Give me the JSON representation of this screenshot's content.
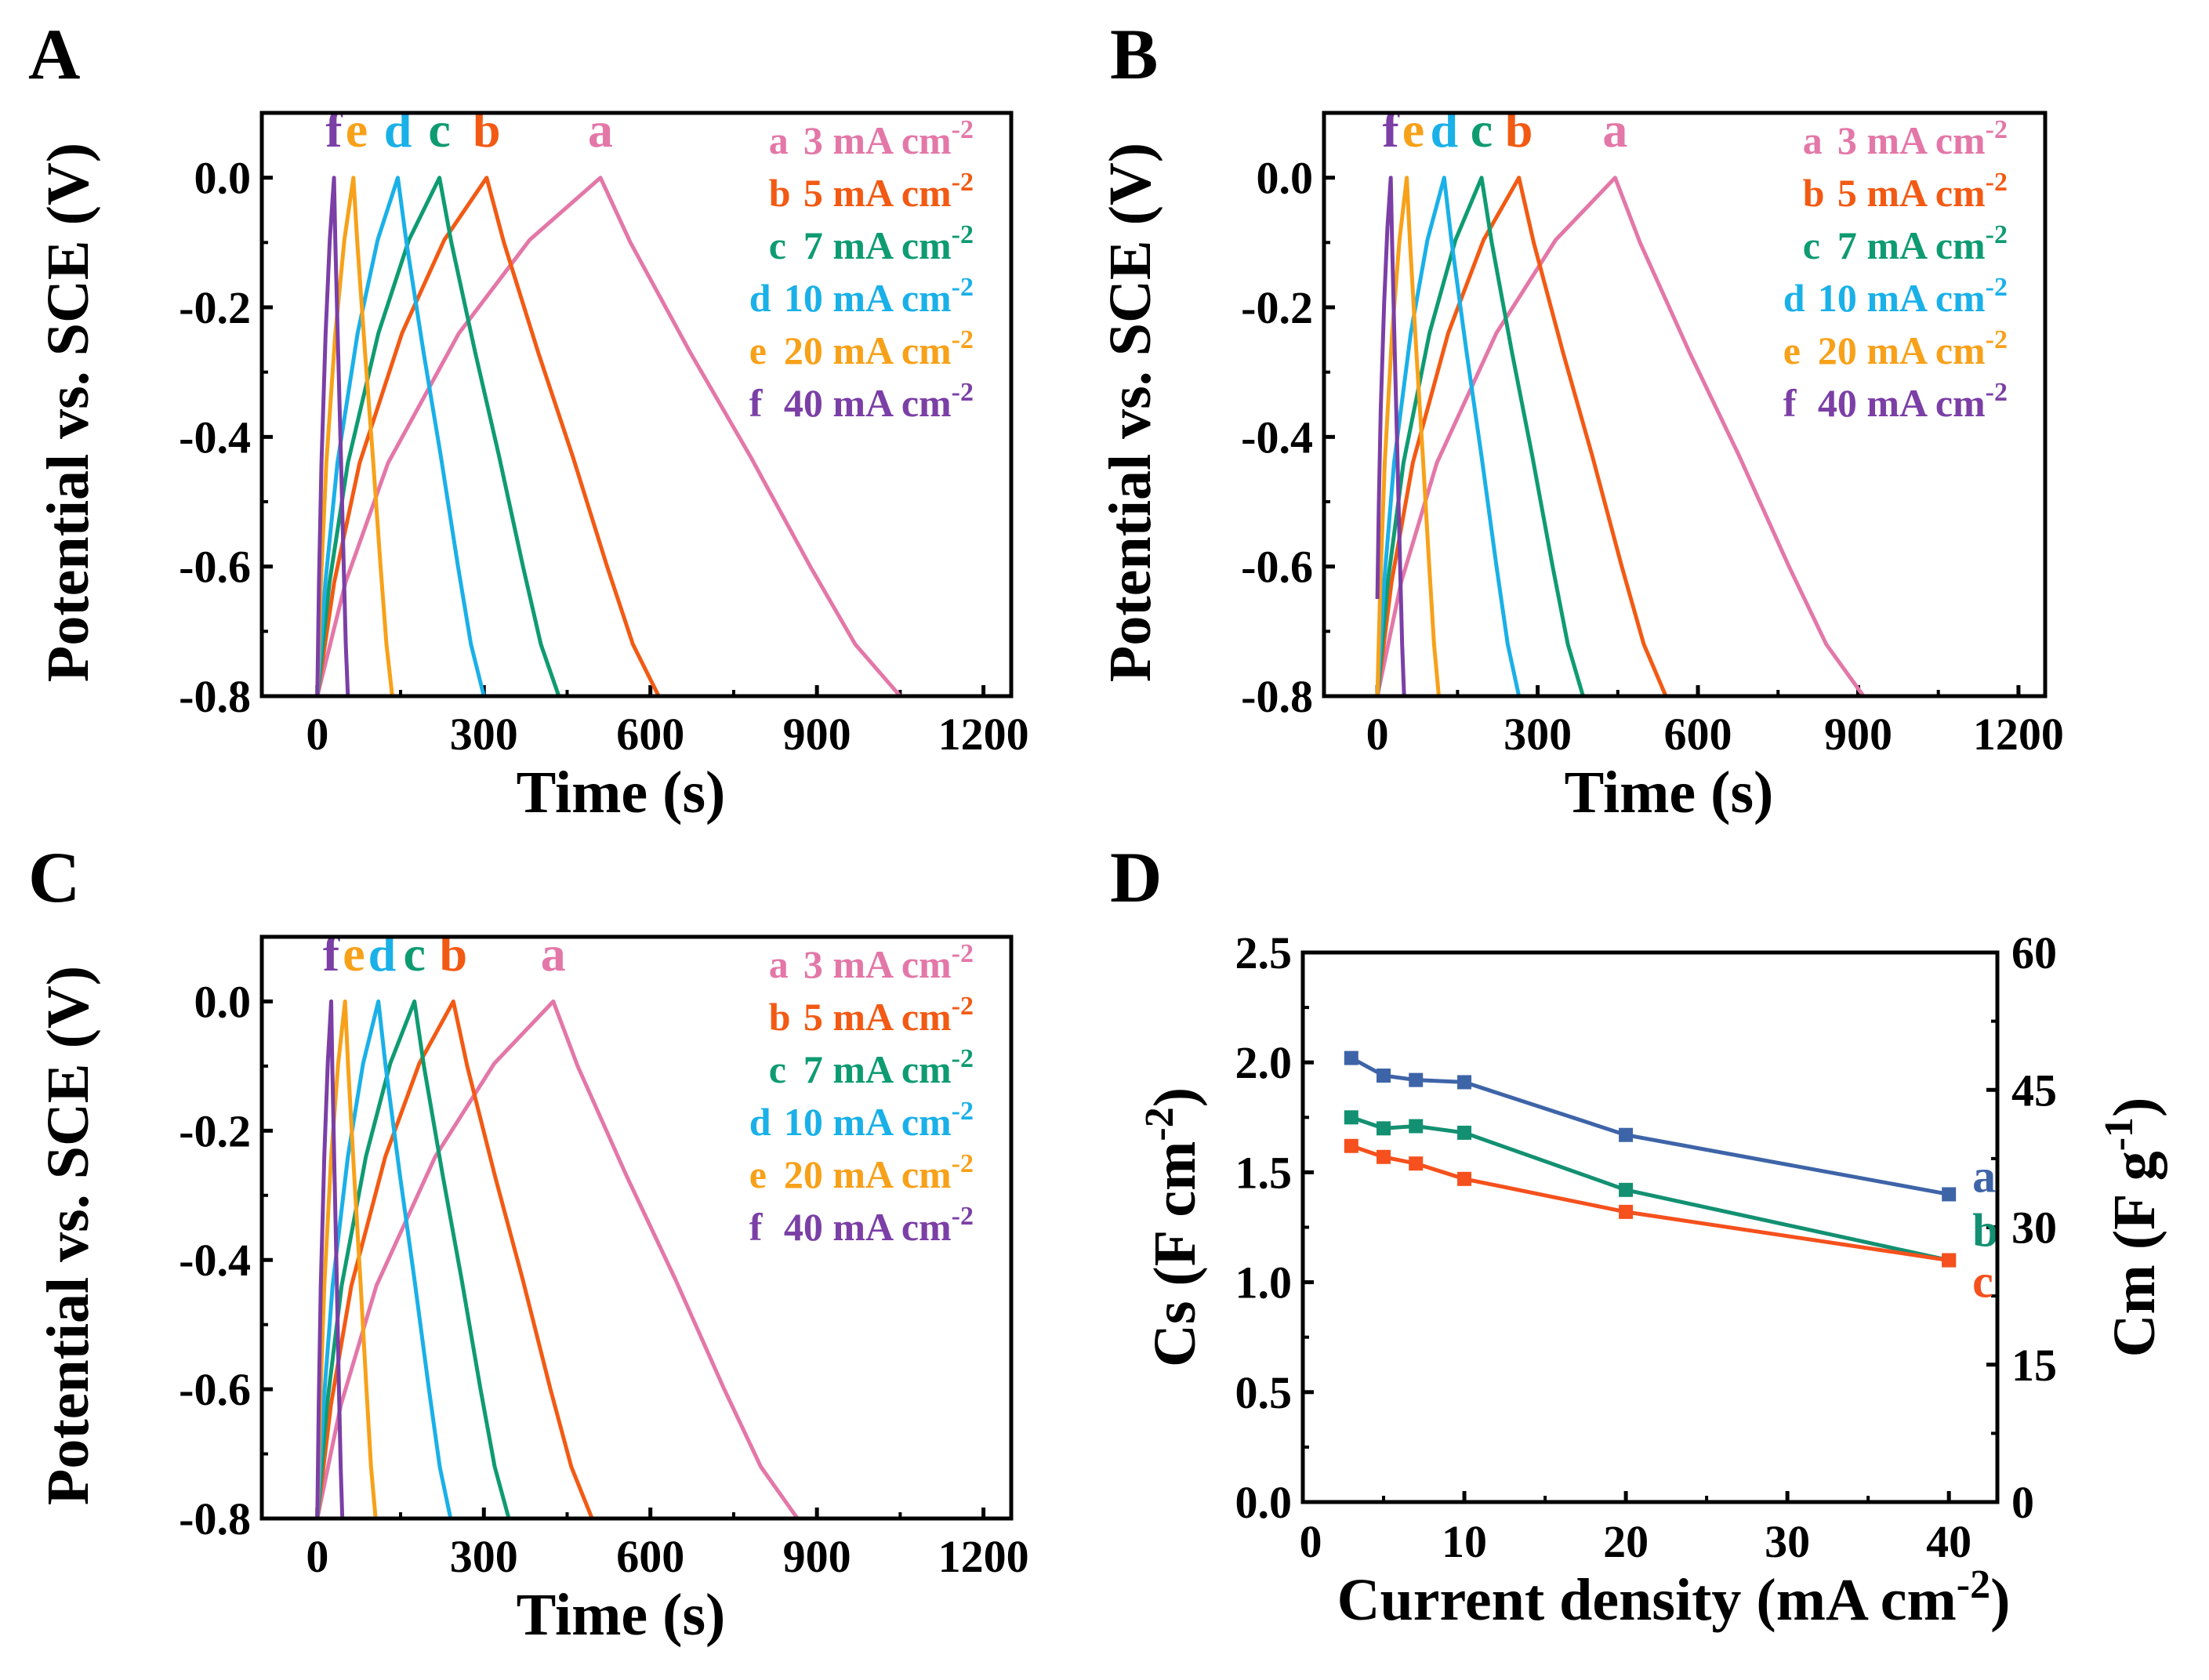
{
  "chart_data": [
    {
      "panel": "A",
      "type": "line",
      "xlabel": "Time (s)",
      "ylabel": "Potential vs. SCE (V)",
      "xlim": [
        -100,
        1250
      ],
      "ylim": [
        -0.8,
        0.1
      ],
      "xticks": [
        "0",
        "300",
        "600",
        "900",
        "1200"
      ],
      "yticks": [
        "0.0",
        "-0.2",
        "-0.4",
        "-0.6",
        "-0.8"
      ],
      "series": [
        {
          "id": "a",
          "name": "3 mA cm",
          "sup": "-2",
          "color": "#e377a8",
          "start_V": -0.8,
          "peak_V": 0.0,
          "charge_end_s": 510,
          "discharge_end_s": 1050
        },
        {
          "id": "b",
          "name": "5 mA cm",
          "sup": "-2",
          "color": "#f25a14",
          "start_V": -0.8,
          "peak_V": 0.0,
          "charge_end_s": 305,
          "discharge_end_s": 615
        },
        {
          "id": "c",
          "name": "7 mA cm",
          "sup": "-2",
          "color": "#0f9b72",
          "start_V": -0.8,
          "peak_V": 0.0,
          "charge_end_s": 220,
          "discharge_end_s": 435
        },
        {
          "id": "d",
          "name": "10 mA cm",
          "sup": "-2",
          "color": "#1ab0e8",
          "start_V": -0.8,
          "peak_V": 0.0,
          "charge_end_s": 145,
          "discharge_end_s": 300
        },
        {
          "id": "e",
          "name": "20 mA cm",
          "sup": "-2",
          "color": "#f7a11a",
          "start_V": -0.8,
          "peak_V": 0.0,
          "charge_end_s": 65,
          "discharge_end_s": 135
        },
        {
          "id": "f",
          "name": "40 mA cm",
          "sup": "-2",
          "color": "#7b3fa6",
          "start_V": -0.8,
          "peak_V": 0.0,
          "charge_end_s": 30,
          "discharge_end_s": 55
        }
      ]
    },
    {
      "panel": "B",
      "type": "line",
      "xlabel": "Time (s)",
      "ylabel": "Potential vs. SCE (V)",
      "xlim": [
        -100,
        1250
      ],
      "ylim": [
        -0.8,
        0.1
      ],
      "xticks": [
        "0",
        "300",
        "600",
        "900",
        "1200"
      ],
      "yticks": [
        "0.0",
        "-0.2",
        "-0.4",
        "-0.6",
        "-0.8"
      ],
      "series": [
        {
          "id": "a",
          "name": "3 mA cm",
          "sup": "-2",
          "color": "#e377a8",
          "start_V": -0.8,
          "peak_V": 0.0,
          "charge_end_s": 445,
          "discharge_end_s": 910
        },
        {
          "id": "b",
          "name": "5 mA cm",
          "sup": "-2",
          "color": "#f25a14",
          "start_V": -0.8,
          "peak_V": 0.0,
          "charge_end_s": 265,
          "discharge_end_s": 540
        },
        {
          "id": "c",
          "name": "7 mA cm",
          "sup": "-2",
          "color": "#0f9b72",
          "start_V": -0.8,
          "peak_V": 0.0,
          "charge_end_s": 195,
          "discharge_end_s": 385
        },
        {
          "id": "d",
          "name": "10 mA cm",
          "sup": "-2",
          "color": "#1ab0e8",
          "start_V": -0.8,
          "peak_V": 0.0,
          "charge_end_s": 125,
          "discharge_end_s": 265
        },
        {
          "id": "e",
          "name": "20 mA cm",
          "sup": "-2",
          "color": "#f7a11a",
          "start_V": -0.8,
          "peak_V": 0.0,
          "charge_end_s": 55,
          "discharge_end_s": 115
        },
        {
          "id": "f",
          "name": "40 mA cm",
          "sup": "-2",
          "color": "#7b3fa6",
          "start_V": -0.65,
          "peak_V": 0.0,
          "charge_end_s": 25,
          "discharge_end_s": 50
        }
      ]
    },
    {
      "panel": "C",
      "type": "line",
      "xlabel": "Time (s)",
      "ylabel": "Potential vs. SCE (V)",
      "xlim": [
        -100,
        1250
      ],
      "ylim": [
        -0.8,
        0.1
      ],
      "xticks": [
        "0",
        "300",
        "600",
        "900",
        "1200"
      ],
      "yticks": [
        "0.0",
        "-0.2",
        "-0.4",
        "-0.6",
        "-0.8"
      ],
      "series": [
        {
          "id": "a",
          "name": "3 mA cm",
          "sup": "-2",
          "color": "#e377a8",
          "start_V": -0.8,
          "peak_V": 0.0,
          "charge_end_s": 425,
          "discharge_end_s": 865
        },
        {
          "id": "b",
          "name": "5 mA cm",
          "sup": "-2",
          "color": "#f25a14",
          "start_V": -0.8,
          "peak_V": 0.0,
          "charge_end_s": 245,
          "discharge_end_s": 495
        },
        {
          "id": "c",
          "name": "7 mA cm",
          "sup": "-2",
          "color": "#0f9b72",
          "start_V": -0.8,
          "peak_V": 0.0,
          "charge_end_s": 175,
          "discharge_end_s": 345
        },
        {
          "id": "d",
          "name": "10 mA cm",
          "sup": "-2",
          "color": "#1ab0e8",
          "start_V": -0.8,
          "peak_V": 0.0,
          "charge_end_s": 110,
          "discharge_end_s": 240
        },
        {
          "id": "e",
          "name": "20 mA cm",
          "sup": "-2",
          "color": "#f7a11a",
          "start_V": -0.8,
          "peak_V": 0.0,
          "charge_end_s": 50,
          "discharge_end_s": 105
        },
        {
          "id": "f",
          "name": "40 mA cm",
          "sup": "-2",
          "color": "#7b3fa6",
          "start_V": -0.8,
          "peak_V": 0.0,
          "charge_end_s": 25,
          "discharge_end_s": 45
        }
      ]
    },
    {
      "panel": "D",
      "type": "line",
      "xlabel": "Current density (mA cm",
      "xlabel_sup": "-2",
      "xlabel_end": ")",
      "ylabel": "Cs (F cm",
      "ylabel_sup": "-2",
      "ylabel_end": ")",
      "y2label": "Cm (F g",
      "y2label_sup": "-1",
      "y2label_end": ")",
      "xlim": [
        0,
        43
      ],
      "ylim": [
        0,
        2.5
      ],
      "y2lim": [
        0,
        60
      ],
      "xticks": [
        "0",
        "10",
        "20",
        "30",
        "40"
      ],
      "yticks": [
        "0.0",
        "0.5",
        "1.0",
        "1.5",
        "2.0",
        "2.5"
      ],
      "y2ticks": [
        "0",
        "15",
        "30",
        "45",
        "60"
      ],
      "x": [
        3,
        5,
        7,
        10,
        20,
        40
      ],
      "series": [
        {
          "id": "a",
          "color": "#3e64a8",
          "values": [
            2.02,
            1.94,
            1.92,
            1.91,
            1.67,
            1.4
          ]
        },
        {
          "id": "b",
          "color": "#139072",
          "values": [
            1.75,
            1.7,
            1.71,
            1.68,
            1.42,
            1.1
          ]
        },
        {
          "id": "c",
          "color": "#f5501d",
          "values": [
            1.62,
            1.57,
            1.54,
            1.47,
            1.32,
            1.1
          ]
        }
      ]
    }
  ]
}
